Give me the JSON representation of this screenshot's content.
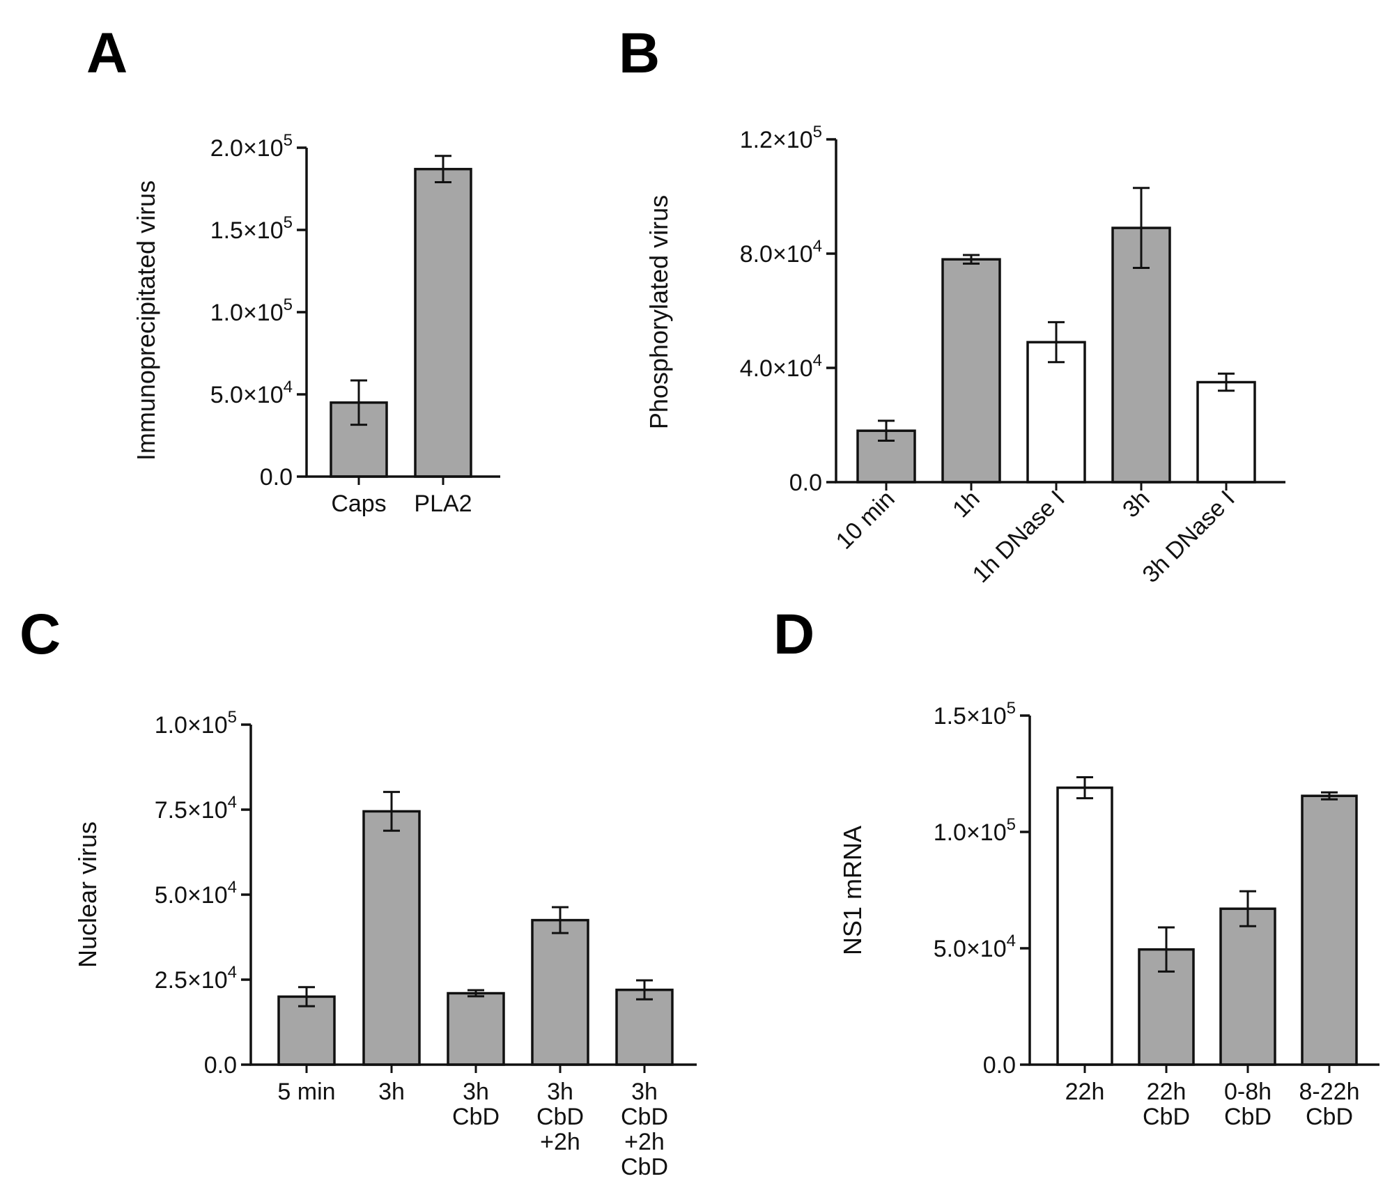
{
  "colors": {
    "gray_bar": "#a6a6a6",
    "white_bar": "#ffffff",
    "stroke": "#111111"
  },
  "chart_data": [
    {
      "panel": "A",
      "type": "bar",
      "ylabel": "Immunoprecipitated virus",
      "ylim": [
        0,
        200000
      ],
      "yticks": [
        {
          "value": 0,
          "mant": "0.0",
          "exp": ""
        },
        {
          "value": 50000,
          "mant": "5.0×10",
          "exp": "4"
        },
        {
          "value": 100000,
          "mant": "1.0×10",
          "exp": "5"
        },
        {
          "value": 150000,
          "mant": "1.5×10",
          "exp": "5"
        },
        {
          "value": 200000,
          "mant": "2.0×10",
          "exp": "5"
        }
      ],
      "categories": [
        {
          "lines": [
            "Caps"
          ],
          "value": 45000,
          "err": 13500,
          "fill": "gray"
        },
        {
          "lines": [
            "PLA2"
          ],
          "value": 187000,
          "err": 8000,
          "fill": "gray"
        }
      ]
    },
    {
      "panel": "B",
      "type": "bar",
      "ylabel": "Phosphorylated virus",
      "ylim": [
        0,
        120000
      ],
      "yticks": [
        {
          "value": 0,
          "mant": "0.0",
          "exp": ""
        },
        {
          "value": 40000,
          "mant": "4.0×10",
          "exp": "4"
        },
        {
          "value": 80000,
          "mant": "8.0×10",
          "exp": "4"
        },
        {
          "value": 120000,
          "mant": "1.2×10",
          "exp": "5"
        }
      ],
      "categories": [
        {
          "lines": [
            "10 min"
          ],
          "value": 18000,
          "err": 3500,
          "fill": "gray"
        },
        {
          "lines": [
            "1h"
          ],
          "value": 78000,
          "err": 1500,
          "fill": "gray"
        },
        {
          "lines": [
            "1h DNase I"
          ],
          "value": 49000,
          "err": 7000,
          "fill": "white"
        },
        {
          "lines": [
            "3h"
          ],
          "value": 89000,
          "err": 14000,
          "fill": "gray"
        },
        {
          "lines": [
            "3h DNase I"
          ],
          "value": 35000,
          "err": 3000,
          "fill": "white"
        }
      ]
    },
    {
      "panel": "C",
      "type": "bar",
      "ylabel": "Nuclear virus",
      "ylim": [
        0,
        100000
      ],
      "yticks": [
        {
          "value": 0,
          "mant": "0.0",
          "exp": ""
        },
        {
          "value": 25000,
          "mant": "2.5×10",
          "exp": "4"
        },
        {
          "value": 50000,
          "mant": "5.0×10",
          "exp": "4"
        },
        {
          "value": 75000,
          "mant": "7.5×10",
          "exp": "4"
        },
        {
          "value": 100000,
          "mant": "1.0×10",
          "exp": "5"
        }
      ],
      "categories": [
        {
          "lines": [
            "5 min"
          ],
          "value": 20000,
          "err": 2800,
          "fill": "gray"
        },
        {
          "lines": [
            "3h"
          ],
          "value": 74500,
          "err": 5700,
          "fill": "gray"
        },
        {
          "lines": [
            "3h",
            "CbD"
          ],
          "value": 21000,
          "err": 900,
          "fill": "gray"
        },
        {
          "lines": [
            "3h",
            "CbD",
            "+2h"
          ],
          "value": 42500,
          "err": 3800,
          "fill": "gray"
        },
        {
          "lines": [
            "3h",
            "CbD",
            "+2h",
            "CbD"
          ],
          "value": 22000,
          "err": 2800,
          "fill": "gray"
        }
      ]
    },
    {
      "panel": "D",
      "type": "bar",
      "ylabel": "NS1 mRNA",
      "ylim": [
        0,
        150000
      ],
      "yticks": [
        {
          "value": 0,
          "mant": "0.0",
          "exp": ""
        },
        {
          "value": 50000,
          "mant": "5.0×10",
          "exp": "4"
        },
        {
          "value": 100000,
          "mant": "1.0×10",
          "exp": "5"
        },
        {
          "value": 150000,
          "mant": "1.5×10",
          "exp": "5"
        }
      ],
      "categories": [
        {
          "lines": [
            "22h"
          ],
          "value": 119000,
          "err": 4500,
          "fill": "white"
        },
        {
          "lines": [
            "22h",
            "CbD"
          ],
          "value": 49500,
          "err": 9500,
          "fill": "gray"
        },
        {
          "lines": [
            "0-8h",
            "CbD"
          ],
          "value": 67000,
          "err": 7500,
          "fill": "gray"
        },
        {
          "lines": [
            "8-22h",
            "CbD"
          ],
          "value": 115500,
          "err": 1500,
          "fill": "gray"
        }
      ]
    }
  ]
}
